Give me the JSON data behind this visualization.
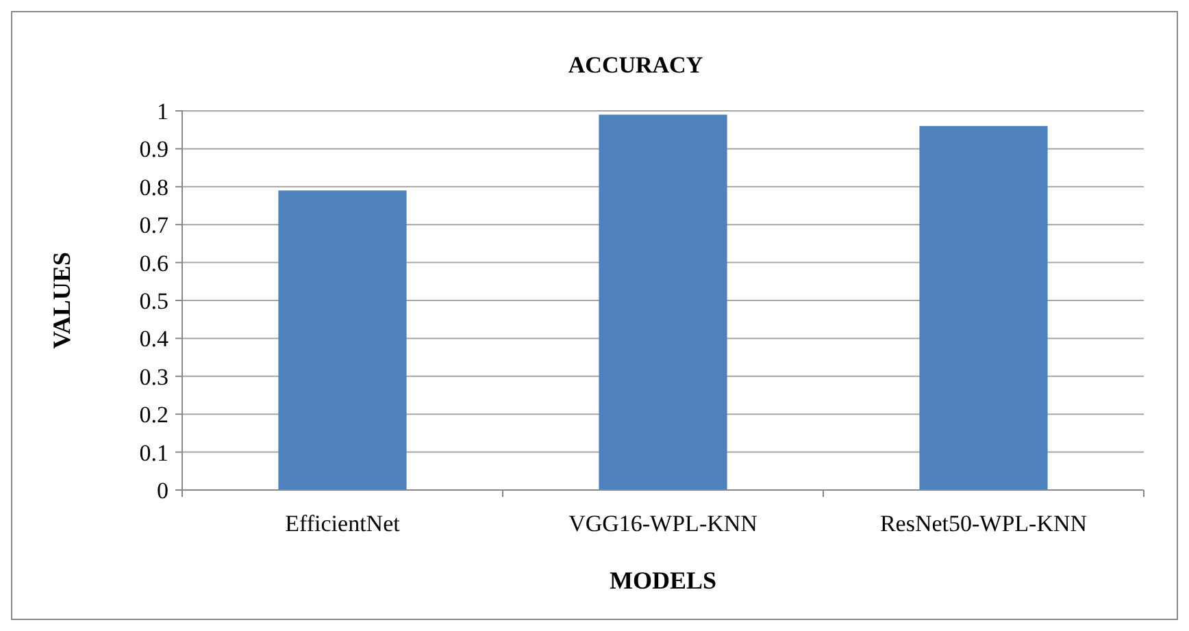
{
  "chart_data": {
    "type": "bar",
    "title": "ACCURACY",
    "xlabel": "MODELS",
    "ylabel": "VALUES",
    "categories": [
      "EfficientNet",
      "VGG16-WPL-KNN",
      "ResNet50-WPL-KNN"
    ],
    "values": [
      0.79,
      0.99,
      0.96
    ],
    "color": "#4f81bd",
    "ylim": [
      0,
      1
    ],
    "yticks": [
      0,
      0.1,
      0.2,
      0.3,
      0.4,
      0.5,
      0.6,
      0.7,
      0.8,
      0.9,
      1
    ],
    "grid": "y"
  }
}
